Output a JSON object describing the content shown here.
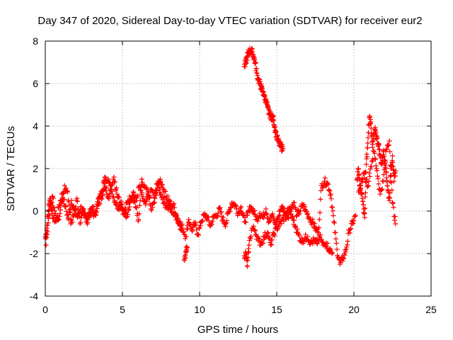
{
  "chart_data": {
    "type": "scatter",
    "title": "Day 347 of 2020, Sidereal Day-to-day VTEC variation (SDTVAR) for receiver eur2",
    "xlabel": "GPS time / hours",
    "ylabel": "SDTVAR / TECUs",
    "xlim": [
      0,
      25
    ],
    "ylim": [
      -4,
      8
    ],
    "xticks": [
      0,
      5,
      10,
      15,
      20,
      25
    ],
    "yticks": [
      -4,
      -2,
      0,
      2,
      4,
      6,
      8
    ],
    "grid": true,
    "marker": "+",
    "color": "#ff0000",
    "series": [
      {
        "name": "SDTVAR",
        "segments": [
          {
            "x": [
              0.0,
              0.1,
              0.2,
              0.3,
              0.4,
              0.5,
              0.7,
              0.9,
              1.1,
              1.3,
              1.5,
              1.7,
              1.9,
              2.1,
              2.3,
              2.5,
              2.7,
              2.9,
              3.1,
              3.3,
              3.5,
              3.7,
              3.9,
              4.1,
              4.3,
              4.5,
              4.7,
              4.9,
              5.1,
              5.3,
              5.5,
              5.7,
              5.9,
              6.1,
              6.3,
              6.5,
              6.7,
              6.9,
              7.1,
              7.3,
              7.5,
              7.7,
              7.9,
              8.1,
              8.3,
              8.5,
              8.7,
              8.9,
              9.1,
              9.3,
              9.5,
              9.7,
              9.9,
              10.1,
              10.3,
              10.5,
              10.7,
              10.9,
              11.1,
              11.3,
              11.5,
              11.7,
              11.9,
              12.1,
              12.3,
              12.5,
              12.7,
              12.9,
              13.1,
              13.3,
              13.5,
              13.7,
              13.9,
              14.1,
              14.3,
              14.5,
              14.7,
              14.9,
              15.1,
              15.3,
              15.5,
              15.7,
              15.9,
              16.1,
              16.3,
              16.5,
              16.7,
              16.9,
              17.1,
              17.3,
              17.5,
              17.7,
              17.9,
              18.1,
              18.3,
              18.5,
              18.7,
              18.9,
              19.1,
              19.3,
              19.5,
              19.7,
              19.9,
              20.1
            ],
            "y": [
              -1.3,
              -0.8,
              0.0,
              0.6,
              0.2,
              -0.3,
              -0.5,
              0.3,
              0.8,
              0.2,
              -0.4,
              0.5,
              0.0,
              -0.3,
              0.2,
              -0.2,
              -0.4,
              0.1,
              -0.1,
              0.0,
              0.4,
              0.8,
              1.1,
              0.7,
              1.0,
              0.5,
              0.2,
              0.3,
              -0.1,
              0.4,
              0.6,
              0.9,
              0.5,
              1.2,
              0.6,
              0.3,
              0.7,
              1.0,
              0.6,
              1.2,
              0.8,
              0.4,
              0.2,
              0.1,
              0.3,
              -0.2,
              -0.5,
              -0.8,
              -1.2,
              -0.4,
              -0.9,
              -0.6,
              -1.1,
              -0.5,
              -0.2,
              -0.3,
              -0.7,
              -0.3,
              -0.2,
              0.1,
              -0.4,
              -0.6,
              0.0,
              0.4,
              0.3,
              -0.1,
              0.2,
              -0.5,
              -0.2,
              0.2,
              0.0,
              -0.4,
              -0.1,
              -0.3,
              0.1,
              -0.5,
              -0.2,
              -0.6,
              -0.3,
              0.2,
              0.0,
              -0.3,
              0.1,
              0.4,
              -0.2,
              0.0,
              0.3,
              0.0,
              -0.3,
              -0.5,
              -0.8,
              -1.0,
              1.2,
              1.4,
              1.3,
              0.8,
              -0.5,
              -1.8,
              -2.5,
              -2.2,
              -1.8,
              -0.9,
              -0.6,
              -0.2
            ]
          },
          {
            "x": [
              0.05,
              0.25,
              0.45,
              0.65,
              0.85,
              1.05,
              1.25,
              1.45,
              1.65,
              1.85,
              2.05,
              2.25,
              2.45,
              2.65,
              2.85,
              3.05,
              3.25,
              3.45,
              3.65,
              3.85,
              4.05,
              4.25,
              4.45,
              4.65,
              4.85,
              5.05,
              5.25,
              5.45,
              5.65,
              5.85,
              6.05,
              6.25,
              6.45,
              6.65,
              6.85,
              7.05,
              7.25,
              7.45,
              7.65,
              7.85,
              8.05,
              8.25,
              8.45,
              8.65,
              8.85
            ],
            "y": [
              -1.6,
              -0.2,
              0.7,
              -0.1,
              -0.4,
              0.4,
              1.2,
              0.9,
              -0.6,
              -0.2,
              0.6,
              -0.6,
              0.1,
              -0.5,
              -0.3,
              0.2,
              -0.2,
              0.6,
              0.9,
              1.6,
              1.4,
              1.2,
              1.6,
              0.8,
              0.4,
              0.1,
              -0.3,
              0.2,
              0.7,
              0.2,
              -0.4,
              1.5,
              1.1,
              0.9,
              0.1,
              0.4,
              1.3,
              1.5,
              0.9,
              0.7,
              0.5,
              -0.1,
              -0.2,
              -0.6,
              -0.9
            ]
          },
          {
            "x": [
              9.0,
              9.1,
              9.2
            ],
            "y": [
              -2.3,
              -1.9,
              -1.7
            ]
          },
          {
            "x": [
              12.9,
              13.0,
              13.1,
              13.2,
              13.3,
              13.4,
              13.5,
              13.6,
              13.7,
              13.8,
              13.9,
              14.0,
              14.1,
              14.2,
              14.3,
              14.4,
              14.5,
              14.6,
              14.7,
              14.8,
              14.9,
              15.0,
              15.1,
              15.2,
              15.3,
              15.4
            ],
            "y": [
              6.8,
              7.0,
              7.3,
              7.5,
              7.55,
              7.5,
              7.3,
              7.0,
              6.5,
              6.2,
              6.0,
              5.8,
              5.6,
              5.4,
              5.2,
              4.9,
              4.6,
              4.5,
              4.4,
              4.3,
              3.8,
              3.5,
              3.3,
              3.1,
              3.0,
              2.95
            ]
          },
          {
            "x": [
              12.9,
              13.0,
              13.1,
              13.2,
              13.4,
              13.6,
              13.8,
              14.0,
              14.2,
              14.4,
              14.6,
              14.8,
              15.0,
              15.2,
              15.4,
              15.6,
              15.8,
              16.0,
              16.2,
              16.4,
              16.6,
              16.8,
              17.0,
              17.2,
              17.4,
              17.6,
              17.8,
              18.0,
              18.2,
              18.4,
              18.6
            ],
            "y": [
              -2.1,
              -2.0,
              -2.6,
              -1.6,
              -0.8,
              -0.9,
              -1.4,
              -1.5,
              -1.2,
              -1.0,
              -1.6,
              -1.1,
              -0.8,
              -0.6,
              -0.4,
              -0.2,
              0.1,
              -0.3,
              -0.7,
              -1.1,
              -1.4,
              -1.3,
              -1.2,
              -1.5,
              -1.4,
              -1.5,
              -1.2,
              -1.6,
              -1.5,
              -1.8,
              -2.0
            ]
          },
          {
            "x": [
              20.2,
              20.3,
              20.4,
              20.5,
              20.6,
              20.7,
              20.8,
              20.9,
              21.0,
              21.1,
              21.2,
              21.3,
              21.4,
              21.5,
              21.6,
              21.7,
              21.8,
              21.9,
              22.0,
              22.1,
              22.2,
              22.3,
              22.4,
              22.5,
              22.6,
              22.7
            ],
            "y": [
              1.5,
              2.0,
              1.2,
              0.8,
              0.3,
              -0.3,
              2.2,
              3.2,
              4.4,
              4.2,
              3.0,
              3.6,
              3.8,
              3.4,
              3.1,
              2.6,
              2.2,
              2.8,
              2.4,
              1.8,
              1.0,
              0.5,
              2.0,
              2.6,
              1.4,
              1.9
            ]
          },
          {
            "x": [
              20.3,
              20.5,
              20.7,
              20.9,
              21.1,
              21.3,
              21.5,
              21.7,
              21.9,
              22.1,
              22.3,
              22.5,
              22.7
            ],
            "y": [
              0.9,
              1.4,
              1.8,
              1.2,
              2.1,
              2.8,
              1.9,
              0.8,
              1.4,
              2.9,
              3.3,
              0.4,
              -0.6
            ]
          }
        ]
      }
    ]
  }
}
